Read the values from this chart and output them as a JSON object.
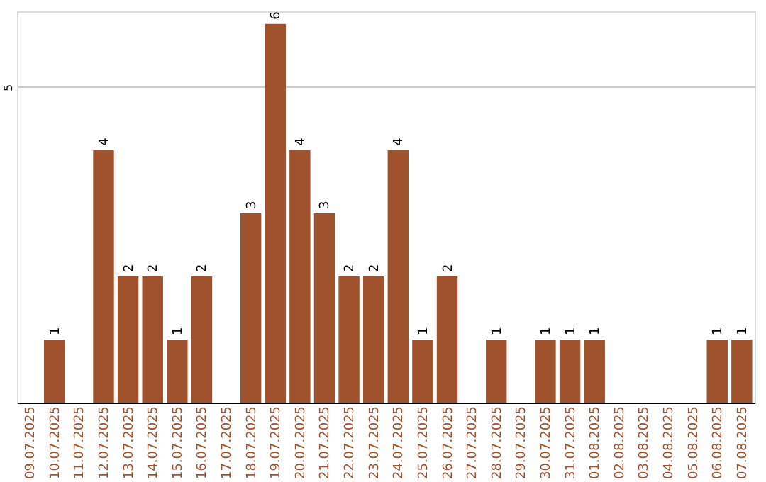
{
  "chart_data": {
    "type": "bar",
    "categories": [
      "09.07.2025",
      "10.07.2025",
      "11.07.2025",
      "12.07.2025",
      "13.07.2025",
      "14.07.2025",
      "15.07.2025",
      "16.07.2025",
      "17.07.2025",
      "18.07.2025",
      "19.07.2025",
      "20.07.2025",
      "21.07.2025",
      "22.07.2025",
      "23.07.2025",
      "24.07.2025",
      "25.07.2025",
      "26.07.2025",
      "27.07.2025",
      "28.07.2025",
      "29.07.2025",
      "30.07.2025",
      "31.07.2025",
      "01.08.2025",
      "02.08.2025",
      "03.08.2025",
      "04.08.2025",
      "05.08.2025",
      "06.08.2025",
      "07.08.2025"
    ],
    "values": [
      0,
      1,
      0,
      4,
      2,
      2,
      1,
      2,
      0,
      3,
      6,
      4,
      3,
      2,
      2,
      4,
      1,
      2,
      0,
      1,
      0,
      1,
      1,
      1,
      0,
      0,
      0,
      0,
      1,
      1
    ],
    "value_labels": [
      null,
      "1",
      null,
      "4",
      "2",
      "2",
      "1",
      "2",
      null,
      "3",
      "6",
      "4",
      "3",
      "2",
      "2",
      "4",
      "1",
      "2",
      null,
      "1",
      null,
      "1",
      "1",
      "1",
      null,
      null,
      null,
      null,
      "1",
      "1"
    ],
    "color": "#a0522d",
    "ylim": [
      0,
      6.2
    ],
    "yticks": [
      5
    ],
    "grid": "y"
  }
}
